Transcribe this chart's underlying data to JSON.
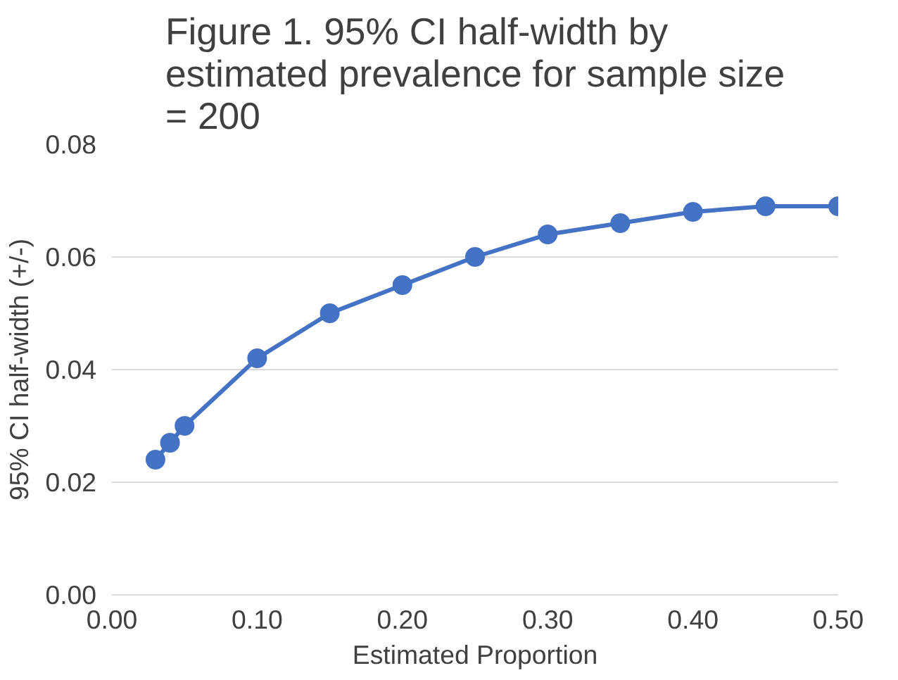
{
  "chart_data": {
    "type": "line",
    "title": "Figure 1. 95% CI half-width by estimated prevalence for sample size = 200",
    "xlabel": "Estimated Proportion",
    "ylabel": "95% CI half-width (+/-)",
    "series": [
      {
        "color": "#4472c4",
        "x": [
          0.03,
          0.04,
          0.05,
          0.1,
          0.15,
          0.2,
          0.25,
          0.3,
          0.35,
          0.4,
          0.45,
          0.5
        ],
        "values": [
          0.024,
          0.027,
          0.03,
          0.042,
          0.05,
          0.055,
          0.06,
          0.064,
          0.066,
          0.068,
          0.069,
          0.069
        ]
      }
    ],
    "xlim": [
      0,
      0.5
    ],
    "xticks": [
      {
        "value": 0,
        "label": "0.00"
      },
      {
        "value": 0.1,
        "label": "0.10"
      },
      {
        "value": 0.2,
        "label": "0.20"
      },
      {
        "value": 0.3,
        "label": "0.30"
      },
      {
        "value": 0.4,
        "label": "0.40"
      },
      {
        "value": 0.5,
        "label": "0.50"
      }
    ],
    "ylim": [
      0,
      0.08
    ],
    "yticks": [
      {
        "value": 0,
        "label": "0.00"
      },
      {
        "value": 0.02,
        "label": "0.02"
      },
      {
        "value": 0.04,
        "label": "0.04"
      },
      {
        "value": 0.06,
        "label": "0.06"
      },
      {
        "value": 0.08,
        "label": "0.08"
      }
    ],
    "grid": "y",
    "marker": "circle",
    "line_style": "solid"
  }
}
